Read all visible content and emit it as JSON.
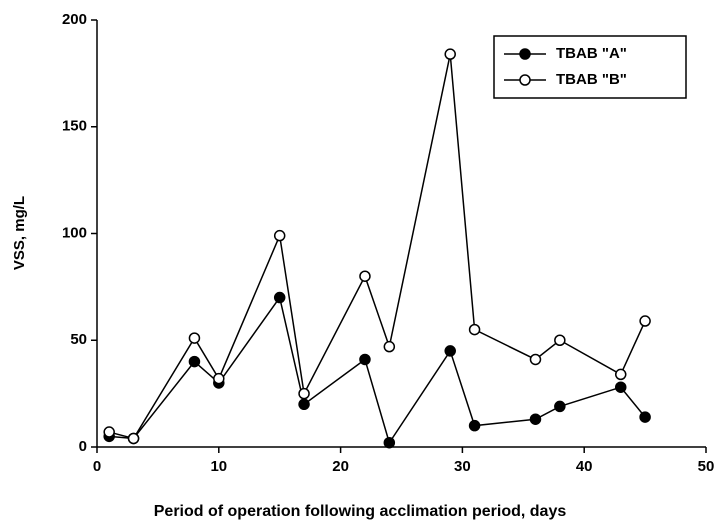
{
  "chart_data": {
    "type": "line",
    "x_label": "Period of operation following acclimation period, days",
    "y_label": "VSS, mg/L",
    "x": [
      1,
      3,
      8,
      10,
      15,
      17,
      22,
      24,
      29,
      31,
      36,
      38,
      43,
      45
    ],
    "series": [
      {
        "name": "TBAB \"A\"",
        "color": "#000000",
        "marker": "filled",
        "values": [
          5,
          4,
          40,
          30,
          70,
          20,
          41,
          2,
          45,
          10,
          13,
          19,
          28,
          14
        ]
      },
      {
        "name": "TBAB \"B\"",
        "color": "#000000",
        "marker": "open",
        "values": [
          7,
          4,
          51,
          32,
          99,
          25,
          80,
          47,
          184,
          55,
          41,
          50,
          34,
          59
        ]
      }
    ],
    "xlim": [
      0,
      50
    ],
    "xticks": [
      0,
      10,
      20,
      30,
      40,
      50
    ],
    "ylim": [
      0,
      200
    ],
    "yticks": [
      0,
      50,
      100,
      150,
      200
    ],
    "legend": "upper right"
  }
}
